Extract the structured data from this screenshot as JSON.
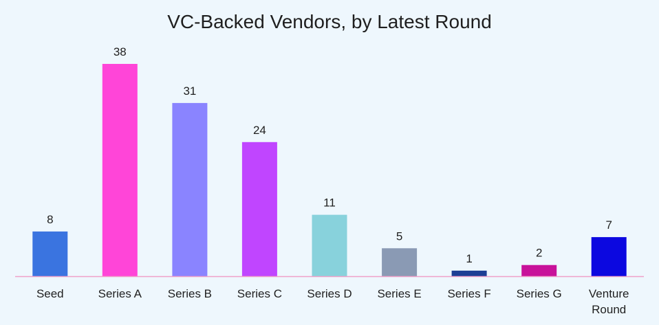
{
  "chart_data": {
    "type": "bar",
    "title": "VC-Backed Vendors, by Latest Round",
    "categories": [
      "Seed",
      "Series A",
      "Series B",
      "Series C",
      "Series D",
      "Series E",
      "Series F",
      "Series G",
      "Venture Round"
    ],
    "values": [
      8,
      38,
      31,
      24,
      11,
      5,
      1,
      2,
      7
    ],
    "colors": [
      "#3a74e0",
      "#ff45d8",
      "#8a84ff",
      "#c045ff",
      "#88d2dc",
      "#8a9ab4",
      "#1c3f95",
      "#c8129a",
      "#0c08e0"
    ],
    "axis_color": "#f0a0c8",
    "xlabel": "",
    "ylabel": "",
    "ylim": [
      0,
      38
    ],
    "data_labels": true,
    "grid": false,
    "legend": "none"
  }
}
